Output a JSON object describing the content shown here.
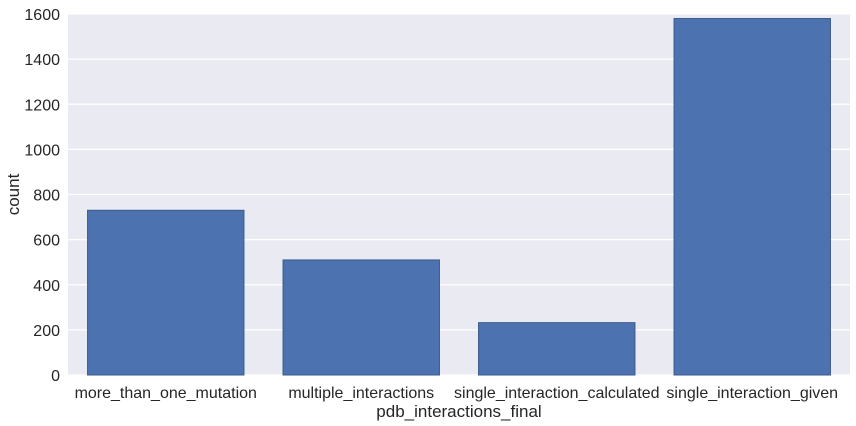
{
  "chart_data": {
    "type": "bar",
    "title": "",
    "xlabel": "pdb_interactions_final",
    "ylabel": "count",
    "categories": [
      "more_than_one_mutation",
      "multiple_interactions",
      "single_interaction_calculated",
      "single_interaction_given"
    ],
    "values": [
      730,
      510,
      232,
      1580
    ],
    "ylim": [
      0,
      1600
    ],
    "yticks": [
      0,
      200,
      400,
      600,
      800,
      1000,
      1200,
      1400,
      1600
    ],
    "grid": true,
    "legend": "none",
    "colors": {
      "bar": "#4c72b0",
      "bar_edge": "#3a5a8c",
      "plot_background": "#eaeaf2",
      "grid": "#ffffff",
      "text": "#262626"
    }
  }
}
